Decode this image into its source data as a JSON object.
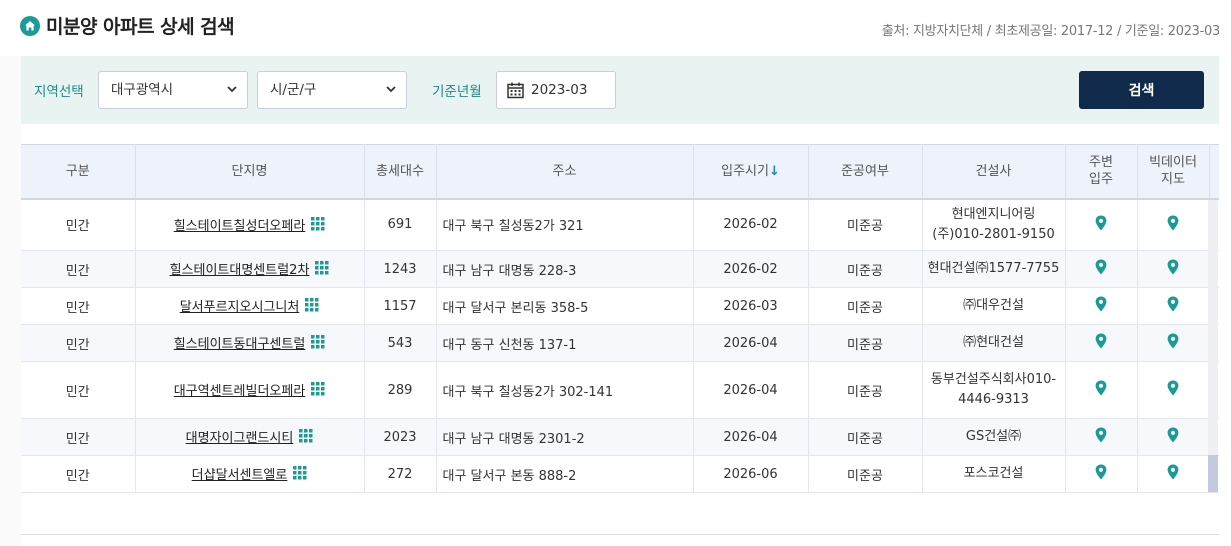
{
  "header": {
    "title": "미분양 아파트 상세 검색",
    "source": "출처: 지방자치단체 / 최초제공일: 2017-12 / 기준일: 2023-03",
    "icon": "home-icon"
  },
  "filters": {
    "region_label": "지역선택",
    "region_value": "대구광역시",
    "district_value": "시/군/구",
    "month_label": "기준년월",
    "month_value": "2023-03",
    "search_label": "검색"
  },
  "table": {
    "headers": {
      "type": "구분",
      "name": "단지명",
      "units": "총세대수",
      "address": "주소",
      "move_in": "입주시기",
      "sort_arrow": "↓",
      "completion": "준공여부",
      "builder": "건설사",
      "nearby1": "주변",
      "nearby2": "입주",
      "bigdata1": "빅데이터",
      "bigdata2": "지도"
    },
    "rows": [
      {
        "type": "민간",
        "name": "힐스테이트칠성더오페라",
        "units": "691",
        "address": "대구 북구 칠성동2가 321",
        "move_in": "2026-02",
        "completion": "미준공",
        "builder": "현대엔지니어링(주)010-2801-9150"
      },
      {
        "type": "민간",
        "name": "힐스테이트대명센트럴2차",
        "units": "1243",
        "address": "대구 남구 대명동 228-3",
        "move_in": "2026-02",
        "completion": "미준공",
        "builder": "현대건설㈜1577-7755"
      },
      {
        "type": "민간",
        "name": "달서푸르지오시그니처",
        "units": "1157",
        "address": "대구 달서구 본리동 358-5",
        "move_in": "2026-03",
        "completion": "미준공",
        "builder": "㈜대우건설"
      },
      {
        "type": "민간",
        "name": "힐스테이트동대구센트럴",
        "units": "543",
        "address": "대구 동구 신천동 137-1",
        "move_in": "2026-04",
        "completion": "미준공",
        "builder": "㈜현대건설"
      },
      {
        "type": "민간",
        "name": "대구역센트레빌더오페라",
        "units": "289",
        "address": "대구 북구 칠성동2가 302-141",
        "move_in": "2026-04",
        "completion": "미준공",
        "builder": "동부건설주식회사010-4446-9313"
      },
      {
        "type": "민간",
        "name": "대명자이그랜드시티",
        "units": "2023",
        "address": "대구 남구 대명동 2301-2",
        "move_in": "2026-04",
        "completion": "미준공",
        "builder": "GS건설㈜"
      },
      {
        "type": "민간",
        "name": "더샵달서센트엘로",
        "units": "272",
        "address": "대구 달서구 본동 888-2",
        "move_in": "2026-06",
        "completion": "미준공",
        "builder": "포스코건설"
      }
    ]
  },
  "colors": {
    "accent": "#1a9b96",
    "button": "#0f2a4a",
    "filter_bg": "#e8f3f2",
    "header_bg": "#eef2fa"
  }
}
